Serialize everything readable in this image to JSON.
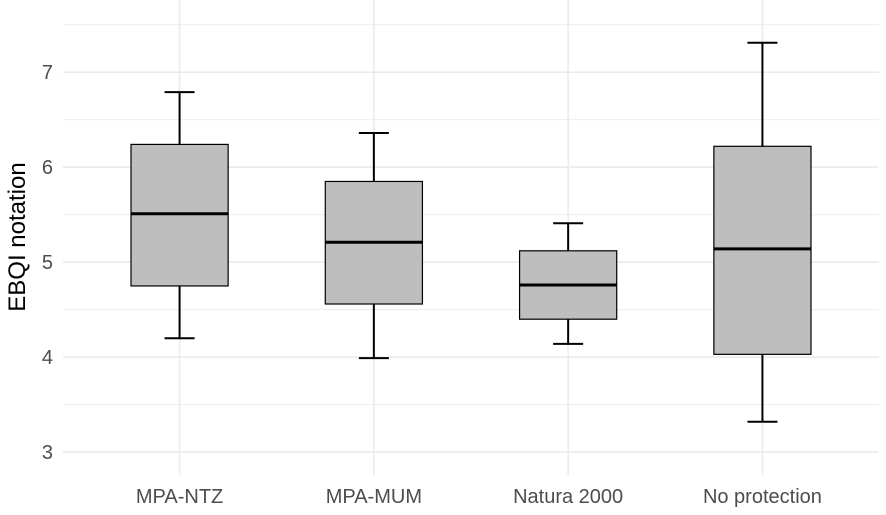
{
  "chart_data": {
    "type": "boxplot",
    "title": "",
    "xlabel": "",
    "ylabel": "EBQI notation",
    "categories": [
      "MPA-NTZ",
      "MPA-MUM",
      "Natura 2000",
      "No protection"
    ],
    "series": [
      {
        "name": "MPA-NTZ",
        "whisker_low": 4.2,
        "q1": 4.75,
        "median": 5.51,
        "q3": 6.24,
        "whisker_high": 6.79
      },
      {
        "name": "MPA-MUM",
        "whisker_low": 3.99,
        "q1": 4.56,
        "median": 5.21,
        "q3": 5.85,
        "whisker_high": 6.36
      },
      {
        "name": "Natura 2000",
        "whisker_low": 4.14,
        "q1": 4.4,
        "median": 4.76,
        "q3": 5.12,
        "whisker_high": 5.41
      },
      {
        "name": "No protection",
        "whisker_low": 3.32,
        "q1": 4.03,
        "median": 5.14,
        "q3": 6.22,
        "whisker_high": 7.31
      }
    ],
    "yticks": [
      3,
      4,
      5,
      6,
      7
    ],
    "ylim": [
      2.76,
      7.76
    ],
    "grid": true,
    "colors": {
      "box_fill": "#bebebe",
      "stroke": "#000000",
      "grid": "#ebebeb"
    }
  }
}
